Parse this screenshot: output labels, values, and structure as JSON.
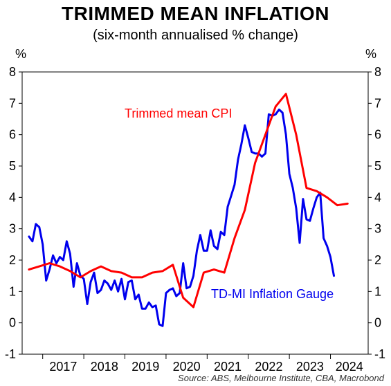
{
  "title": "TRIMMED MEAN INFLATION",
  "subtitle": "(six-month annualised % change)",
  "unit_left": "%",
  "unit_right": "%",
  "source": "Source: ABS, Melbourne Institute, CBA, Macrobond",
  "colors": {
    "trimmed_mean": "#ff0000",
    "td_mi": "#0000ee"
  },
  "chart_data": {
    "type": "line",
    "title": "TRIMMED MEAN INFLATION",
    "subtitle": "(six-month annualised % change)",
    "xlim": [
      "2016-07",
      "2024-12"
    ],
    "ylim": [
      -1,
      8
    ],
    "yticks": [
      -1,
      0,
      1,
      2,
      3,
      4,
      5,
      6,
      7,
      8
    ],
    "xtick_labels": [
      "2017",
      "2018",
      "2019",
      "2020",
      "2021",
      "2022",
      "2023",
      "2024"
    ],
    "grid": false,
    "series": [
      {
        "name": "Trimmed mean CPI",
        "color": "#ff0000",
        "frequency": "quarterly",
        "points": [
          [
            "2016-09",
            1.7
          ],
          [
            "2016-12",
            1.8
          ],
          [
            "2017-03",
            1.9
          ],
          [
            "2017-06",
            1.8
          ],
          [
            "2017-09",
            1.65
          ],
          [
            "2017-12",
            1.45
          ],
          [
            "2018-03",
            1.65
          ],
          [
            "2018-06",
            1.8
          ],
          [
            "2018-09",
            1.65
          ],
          [
            "2018-12",
            1.6
          ],
          [
            "2019-03",
            1.45
          ],
          [
            "2019-06",
            1.45
          ],
          [
            "2019-09",
            1.6
          ],
          [
            "2019-12",
            1.65
          ],
          [
            "2020-03",
            1.85
          ],
          [
            "2020-06",
            0.8
          ],
          [
            "2020-09",
            0.5
          ],
          [
            "2020-12",
            1.6
          ],
          [
            "2021-03",
            1.7
          ],
          [
            "2021-06",
            1.6
          ],
          [
            "2021-09",
            2.7
          ],
          [
            "2021-12",
            3.6
          ],
          [
            "2022-03",
            5.1
          ],
          [
            "2022-06",
            6.0
          ],
          [
            "2022-09",
            6.9
          ],
          [
            "2022-12",
            7.3
          ],
          [
            "2023-03",
            6.0
          ],
          [
            "2023-06",
            4.3
          ],
          [
            "2023-09",
            4.2
          ],
          [
            "2023-12",
            4.0
          ],
          [
            "2024-03",
            3.75
          ],
          [
            "2024-06",
            3.8
          ]
        ]
      },
      {
        "name": "TD-MI Inflation Gauge",
        "color": "#0000ee",
        "frequency": "monthly",
        "points": [
          [
            "2016-09",
            2.75
          ],
          [
            "2016-10",
            2.6
          ],
          [
            "2016-11",
            3.15
          ],
          [
            "2016-12",
            3.05
          ],
          [
            "2017-01",
            2.5
          ],
          [
            "2017-02",
            1.35
          ],
          [
            "2017-03",
            1.7
          ],
          [
            "2017-04",
            2.15
          ],
          [
            "2017-05",
            1.9
          ],
          [
            "2017-06",
            2.1
          ],
          [
            "2017-07",
            2.0
          ],
          [
            "2017-08",
            2.6
          ],
          [
            "2017-09",
            2.2
          ],
          [
            "2017-10",
            1.15
          ],
          [
            "2017-11",
            1.9
          ],
          [
            "2017-12",
            1.5
          ],
          [
            "2018-01",
            1.4
          ],
          [
            "2018-02",
            0.6
          ],
          [
            "2018-03",
            1.3
          ],
          [
            "2018-04",
            1.6
          ],
          [
            "2018-05",
            0.95
          ],
          [
            "2018-06",
            1.05
          ],
          [
            "2018-07",
            1.35
          ],
          [
            "2018-08",
            1.25
          ],
          [
            "2018-09",
            1.05
          ],
          [
            "2018-10",
            1.35
          ],
          [
            "2018-11",
            1.0
          ],
          [
            "2018-12",
            1.4
          ],
          [
            "2019-01",
            0.75
          ],
          [
            "2019-02",
            1.3
          ],
          [
            "2019-03",
            1.35
          ],
          [
            "2019-04",
            0.75
          ],
          [
            "2019-05",
            0.9
          ],
          [
            "2019-06",
            0.45
          ],
          [
            "2019-07",
            0.45
          ],
          [
            "2019-08",
            0.65
          ],
          [
            "2019-09",
            0.5
          ],
          [
            "2019-10",
            0.55
          ],
          [
            "2019-11",
            -0.05
          ],
          [
            "2019-12",
            -0.1
          ],
          [
            "2020-01",
            0.95
          ],
          [
            "2020-02",
            1.05
          ],
          [
            "2020-03",
            1.1
          ],
          [
            "2020-04",
            0.85
          ],
          [
            "2020-05",
            0.95
          ],
          [
            "2020-06",
            1.9
          ],
          [
            "2020-07",
            1.1
          ],
          [
            "2020-08",
            1.15
          ],
          [
            "2020-09",
            1.5
          ],
          [
            "2020-10",
            2.3
          ],
          [
            "2020-11",
            2.8
          ],
          [
            "2020-12",
            2.3
          ],
          [
            "2021-01",
            2.3
          ],
          [
            "2021-02",
            2.95
          ],
          [
            "2021-03",
            2.45
          ],
          [
            "2021-04",
            2.35
          ],
          [
            "2021-05",
            2.9
          ],
          [
            "2021-06",
            2.8
          ],
          [
            "2021-07",
            3.7
          ],
          [
            "2021-08",
            4.05
          ],
          [
            "2021-09",
            4.4
          ],
          [
            "2021-10",
            5.2
          ],
          [
            "2021-11",
            5.7
          ],
          [
            "2021-12",
            6.3
          ],
          [
            "2022-01",
            5.9
          ],
          [
            "2022-02",
            5.45
          ],
          [
            "2022-03",
            5.4
          ],
          [
            "2022-04",
            5.4
          ],
          [
            "2022-05",
            5.3
          ],
          [
            "2022-06",
            5.4
          ],
          [
            "2022-07",
            6.65
          ],
          [
            "2022-08",
            6.6
          ],
          [
            "2022-09",
            6.65
          ],
          [
            "2022-10",
            6.8
          ],
          [
            "2022-11",
            6.7
          ],
          [
            "2022-12",
            6.0
          ],
          [
            "2023-01",
            4.75
          ],
          [
            "2023-02",
            4.3
          ],
          [
            "2023-03",
            3.65
          ],
          [
            "2023-04",
            2.55
          ],
          [
            "2023-05",
            3.95
          ],
          [
            "2023-06",
            3.3
          ],
          [
            "2023-07",
            3.25
          ],
          [
            "2023-08",
            3.65
          ],
          [
            "2023-09",
            4.0
          ],
          [
            "2023-10",
            4.15
          ],
          [
            "2023-11",
            2.7
          ],
          [
            "2023-12",
            2.45
          ],
          [
            "2024-01",
            2.1
          ],
          [
            "2024-02",
            1.5
          ]
        ]
      }
    ],
    "annotations": [
      {
        "text": "Trimmed mean CPI",
        "series": "Trimmed mean CPI"
      },
      {
        "text": "TD-MI Inflation Gauge",
        "series": "TD-MI Inflation Gauge"
      }
    ]
  }
}
